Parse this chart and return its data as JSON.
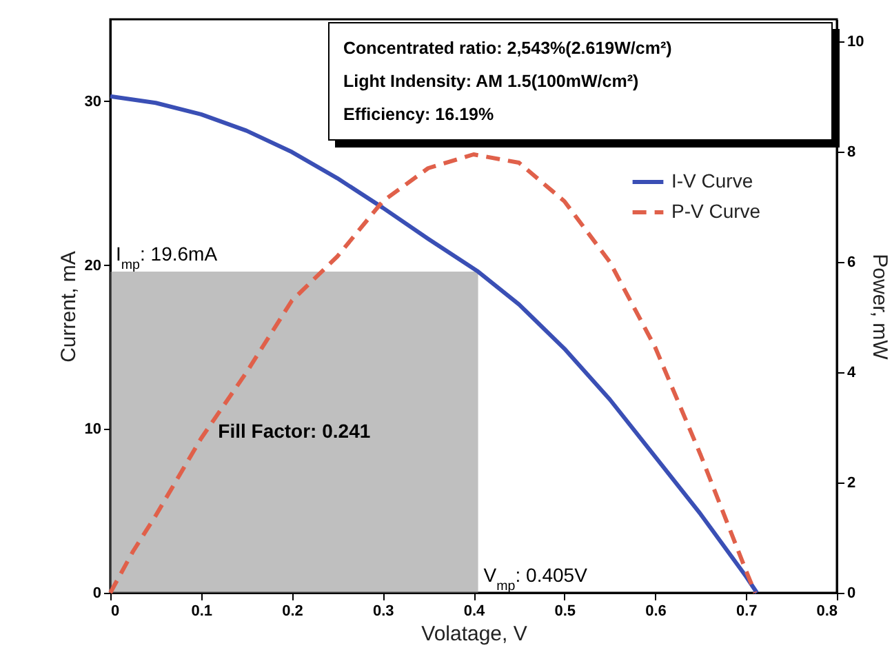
{
  "chart_data": {
    "type": "line",
    "xlabel": "Volatage, V",
    "ylabel": "Current, mA",
    "y2label": "Power, mW",
    "xlim": [
      0,
      0.8
    ],
    "xticks": [
      0,
      0.1,
      0.2,
      0.3,
      0.4,
      0.5,
      0.6,
      0.7,
      0.8
    ],
    "ylim": [
      0,
      35
    ],
    "yticks": [
      0,
      10,
      20,
      30
    ],
    "y2lim": [
      0,
      10.4
    ],
    "y2ticks": [
      0,
      2,
      4,
      6,
      8,
      10
    ],
    "grid": false,
    "legend": "top right",
    "marker": "none",
    "series": [
      {
        "name": "Fill Factor: 0.241",
        "type": "area",
        "color": "#8a8a8a",
        "x": [
          0,
          0.405
        ],
        "values": [
          19.6,
          19.6
        ]
      },
      {
        "name": "I-V Curve",
        "type": "line",
        "color": "#3a4fb5",
        "line_style": "solid",
        "x": [
          0,
          0.05,
          0.1,
          0.15,
          0.2,
          0.25,
          0.3,
          0.35,
          0.405,
          0.45,
          0.5,
          0.55,
          0.6,
          0.65,
          0.7,
          0.712
        ],
        "values": [
          30.3,
          29.9,
          29.2,
          28.2,
          26.9,
          25.3,
          23.5,
          21.6,
          19.6,
          17.6,
          14.9,
          11.8,
          8.3,
          4.8,
          1.0,
          0
        ]
      },
      {
        "name": "P-V Curve",
        "type": "line",
        "color": "#e0604a",
        "line_style": "dashed",
        "axis": "y2",
        "x": [
          0,
          0.025,
          0.05,
          0.1,
          0.15,
          0.2,
          0.25,
          0.3,
          0.35,
          0.4,
          0.45,
          0.5,
          0.55,
          0.6,
          0.65,
          0.7,
          0.71
        ],
        "values": [
          0,
          0.75,
          1.4,
          2.8,
          4.0,
          5.3,
          6.1,
          7.1,
          7.7,
          7.95,
          7.8,
          7.1,
          6.0,
          4.45,
          2.5,
          0.4,
          0
        ]
      }
    ],
    "annotations": [
      "Concentrated ratio: 2,543%(2.619W/cm²)",
      "Light Indensity: AM 1.5(100mW/cm²)",
      "Efficiency: 16.19%",
      {
        "text": "I$_{mp}$: 19.6mA",
        "x": 0,
        "y": 19.6
      },
      {
        "text": "V$_{mp}$: 0.405V",
        "x": 0.405,
        "y": 0
      }
    ]
  }
}
